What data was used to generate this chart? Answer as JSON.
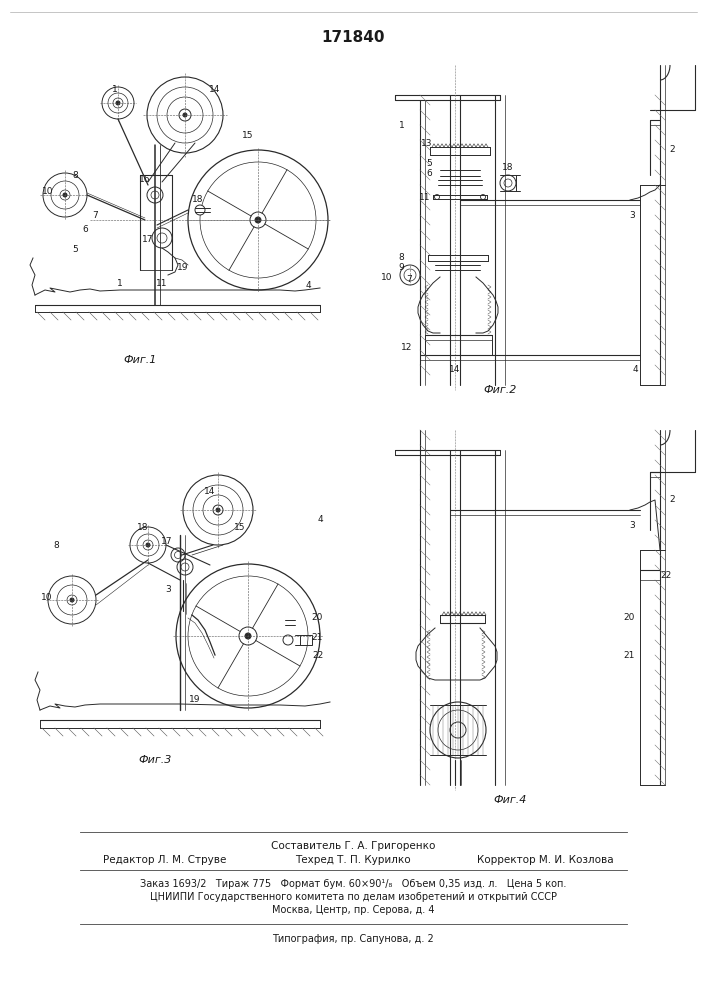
{
  "patent_number": "171840",
  "bg": "#ffffff",
  "lc": "#2a2a2a",
  "tc": "#1a1a1a",
  "fig_labels": [
    "Фиг.1",
    "Фиг.2",
    "Фиг.3",
    "Фиг.4"
  ],
  "footer_line1": "Составитель Г. А. Григоренко",
  "footer_line2_left": "Редактор Л. М. Струве",
  "footer_line2_mid": "Техред Т. П. Курилко",
  "footer_line2_right": "Корректор М. И. Козлова",
  "footer_line3": "Заказ 1693/2   Тираж 775   Формат бум. 60×90¹/₈   Объем 0,35 изд. л.   Цена 5 коп.",
  "footer_line4": "ЦНИИПИ Государственного комитета по делам изобретений и открытий СССР",
  "footer_line5": "Москва, Центр, пр. Серова, д. 4",
  "footer_line6": "Типография, пр. Сапунова, д. 2"
}
